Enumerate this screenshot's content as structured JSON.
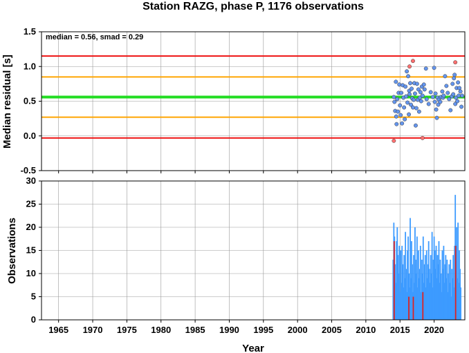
{
  "chart_data": [
    {
      "type": "scatter",
      "title": "Station RAZG, phase P, 1176 observations",
      "annotation": "median = 0.56, smad = 0.29",
      "ylabel": "Median residual [s]",
      "xlim": [
        1962.5,
        2024.5
      ],
      "ylim": [
        -0.5,
        1.5
      ],
      "yticks": [
        "-0.5",
        "0.0",
        "0.5",
        "1.0",
        "1.5"
      ],
      "grid": true,
      "reference_lines": [
        {
          "y": 1.15,
          "color": "#ee1111"
        },
        {
          "y": 0.85,
          "color": "#ffa500"
        },
        {
          "y": 0.56,
          "color": "#22dd22"
        },
        {
          "y": 0.27,
          "color": "#ffa500"
        },
        {
          "y": -0.03,
          "color": "#ee1111"
        }
      ],
      "series": [
        {
          "color": "#6495ed",
          "points": [
            [
              2014.1,
              0.56
            ],
            [
              2014.2,
              0.49
            ],
            [
              2014.3,
              0.36
            ],
            [
              2014.4,
              0.78
            ],
            [
              2014.45,
              0.28
            ],
            [
              2014.5,
              0.17
            ],
            [
              2014.6,
              0.53
            ],
            [
              2014.7,
              0.35
            ],
            [
              2014.8,
              0.62
            ],
            [
              2014.9,
              0.74
            ],
            [
              2015.0,
              0.44
            ],
            [
              2015.1,
              0.3
            ],
            [
              2015.2,
              0.62
            ],
            [
              2015.3,
              0.18
            ],
            [
              2015.4,
              0.73
            ],
            [
              2015.5,
              0.55
            ],
            [
              2015.6,
              0.41
            ],
            [
              2015.7,
              0.24
            ],
            [
              2015.8,
              0.71
            ],
            [
              2015.9,
              0.57
            ],
            [
              2016.0,
              0.93
            ],
            [
              2016.1,
              0.48
            ],
            [
              2016.2,
              0.86
            ],
            [
              2016.3,
              0.31
            ],
            [
              2016.35,
              0.65
            ],
            [
              2016.4,
              0.6
            ],
            [
              2016.5,
              0.76
            ],
            [
              2016.6,
              0.45
            ],
            [
              2016.7,
              0.68
            ],
            [
              2016.8,
              0.54
            ],
            [
              2016.9,
              0.41
            ],
            [
              2017.0,
              0.52
            ],
            [
              2017.1,
              0.76
            ],
            [
              2017.2,
              0.61
            ],
            [
              2017.3,
              0.15
            ],
            [
              2017.4,
              0.4
            ],
            [
              2017.5,
              0.75
            ],
            [
              2017.6,
              0.52
            ],
            [
              2017.7,
              0.67
            ],
            [
              2017.8,
              0.35
            ],
            [
              2017.9,
              0.55
            ],
            [
              2018.0,
              0.63
            ],
            [
              2018.1,
              0.5
            ],
            [
              2018.2,
              0.71
            ],
            [
              2018.3,
              0.58
            ],
            [
              2018.5,
              0.74
            ],
            [
              2018.6,
              0.67
            ],
            [
              2018.8,
              0.97
            ],
            [
              2018.9,
              0.53
            ],
            [
              2019.2,
              0.46
            ],
            [
              2019.5,
              0.63
            ],
            [
              2019.8,
              0.56
            ],
            [
              2020.0,
              0.98
            ],
            [
              2020.1,
              0.49
            ],
            [
              2020.2,
              0.61
            ],
            [
              2020.3,
              0.38
            ],
            [
              2020.4,
              0.26
            ],
            [
              2020.5,
              0.55
            ],
            [
              2020.6,
              0.45
            ],
            [
              2020.7,
              0.52
            ],
            [
              2020.9,
              0.49
            ],
            [
              2021.0,
              0.56
            ],
            [
              2021.2,
              0.64
            ],
            [
              2021.3,
              0.55
            ],
            [
              2021.4,
              0.58
            ],
            [
              2021.6,
              0.86
            ],
            [
              2021.8,
              0.72
            ],
            [
              2022.0,
              0.62
            ],
            [
              2022.2,
              0.53
            ],
            [
              2022.4,
              0.37
            ],
            [
              2022.6,
              0.57
            ],
            [
              2022.7,
              0.75
            ],
            [
              2022.8,
              0.6
            ],
            [
              2022.9,
              0.83
            ],
            [
              2023.0,
              0.88
            ],
            [
              2023.1,
              0.46
            ],
            [
              2023.2,
              0.55
            ],
            [
              2023.3,
              0.69
            ],
            [
              2023.4,
              0.5
            ],
            [
              2023.5,
              0.77
            ],
            [
              2023.6,
              0.58
            ],
            [
              2023.7,
              0.69
            ],
            [
              2023.85,
              0.64
            ],
            [
              2024.0,
              0.42
            ],
            [
              2024.1,
              0.58
            ]
          ]
        },
        {
          "color": "#ff7070",
          "points": [
            [
              2014.1,
              -0.07
            ],
            [
              2016.4,
              1.0
            ],
            [
              2016.9,
              1.08
            ],
            [
              2018.3,
              -0.03
            ],
            [
              2023.1,
              1.06
            ]
          ]
        }
      ]
    },
    {
      "type": "bar",
      "xlabel": "Year",
      "ylabel": "Observations",
      "xlim": [
        1962.5,
        2024.5
      ],
      "ylim": [
        0,
        30
      ],
      "xticks": [
        "1965",
        "1970",
        "1975",
        "1980",
        "1985",
        "1990",
        "1995",
        "2000",
        "2005",
        "2010",
        "2015",
        "2020"
      ],
      "yticks": [
        "0",
        "5",
        "10",
        "15",
        "20",
        "25",
        "30"
      ],
      "grid": true,
      "series": [
        {
          "color": "#3d9bff",
          "x": [
            2014.0,
            2014.1,
            2014.2,
            2014.3,
            2014.4,
            2014.5,
            2014.6,
            2014.7,
            2014.8,
            2014.9,
            2015.0,
            2015.1,
            2015.2,
            2015.3,
            2015.4,
            2015.5,
            2015.6,
            2015.7,
            2015.8,
            2015.9,
            2016.0,
            2016.1,
            2016.2,
            2016.3,
            2016.4,
            2016.5,
            2016.6,
            2016.7,
            2016.8,
            2016.9,
            2017.0,
            2017.1,
            2017.2,
            2017.3,
            2017.4,
            2017.5,
            2017.6,
            2017.7,
            2017.8,
            2017.9,
            2018.0,
            2018.1,
            2018.2,
            2018.3,
            2018.4,
            2018.5,
            2018.6,
            2018.7,
            2018.8,
            2018.9,
            2019.0,
            2019.1,
            2019.2,
            2019.3,
            2019.4,
            2019.5,
            2019.6,
            2019.7,
            2019.8,
            2019.9,
            2020.0,
            2020.1,
            2020.2,
            2020.3,
            2020.4,
            2020.5,
            2020.6,
            2020.7,
            2020.8,
            2020.9,
            2021.0,
            2021.1,
            2021.2,
            2021.3,
            2021.4,
            2021.5,
            2021.6,
            2021.7,
            2021.8,
            2021.9,
            2022.0,
            2022.1,
            2022.2,
            2022.3,
            2022.4,
            2022.5,
            2022.6,
            2022.7,
            2022.8,
            2022.9,
            2023.0,
            2023.1,
            2023.2,
            2023.3,
            2023.4,
            2023.5,
            2023.6,
            2023.7,
            2023.8,
            2023.9
          ],
          "values": [
            13,
            21,
            18,
            12,
            8,
            17,
            20,
            14,
            10,
            16,
            6,
            15,
            8,
            16,
            12,
            7,
            14,
            9,
            19,
            11,
            6,
            15,
            18,
            10,
            7,
            22,
            9,
            17,
            12,
            6,
            14,
            8,
            20,
            13,
            10,
            18,
            7,
            15,
            9,
            11,
            16,
            6,
            13,
            10,
            18,
            8,
            12,
            14,
            7,
            15,
            9,
            12,
            17,
            11,
            8,
            14,
            10,
            19,
            7,
            13,
            18,
            15,
            11,
            16,
            9,
            14,
            12,
            17,
            8,
            13,
            10,
            6,
            15,
            11,
            16,
            8,
            12,
            14,
            9,
            13,
            6,
            10,
            12,
            8,
            13,
            5,
            11,
            9,
            14,
            7,
            16,
            27,
            12,
            20,
            9,
            21,
            8,
            15,
            11,
            7
          ]
        },
        {
          "color": "#dd2222",
          "x": [
            2014.15,
            2016.3,
            2016.95,
            2018.35,
            2023.15
          ],
          "values": [
            17,
            5,
            5,
            6,
            16
          ]
        }
      ]
    }
  ]
}
